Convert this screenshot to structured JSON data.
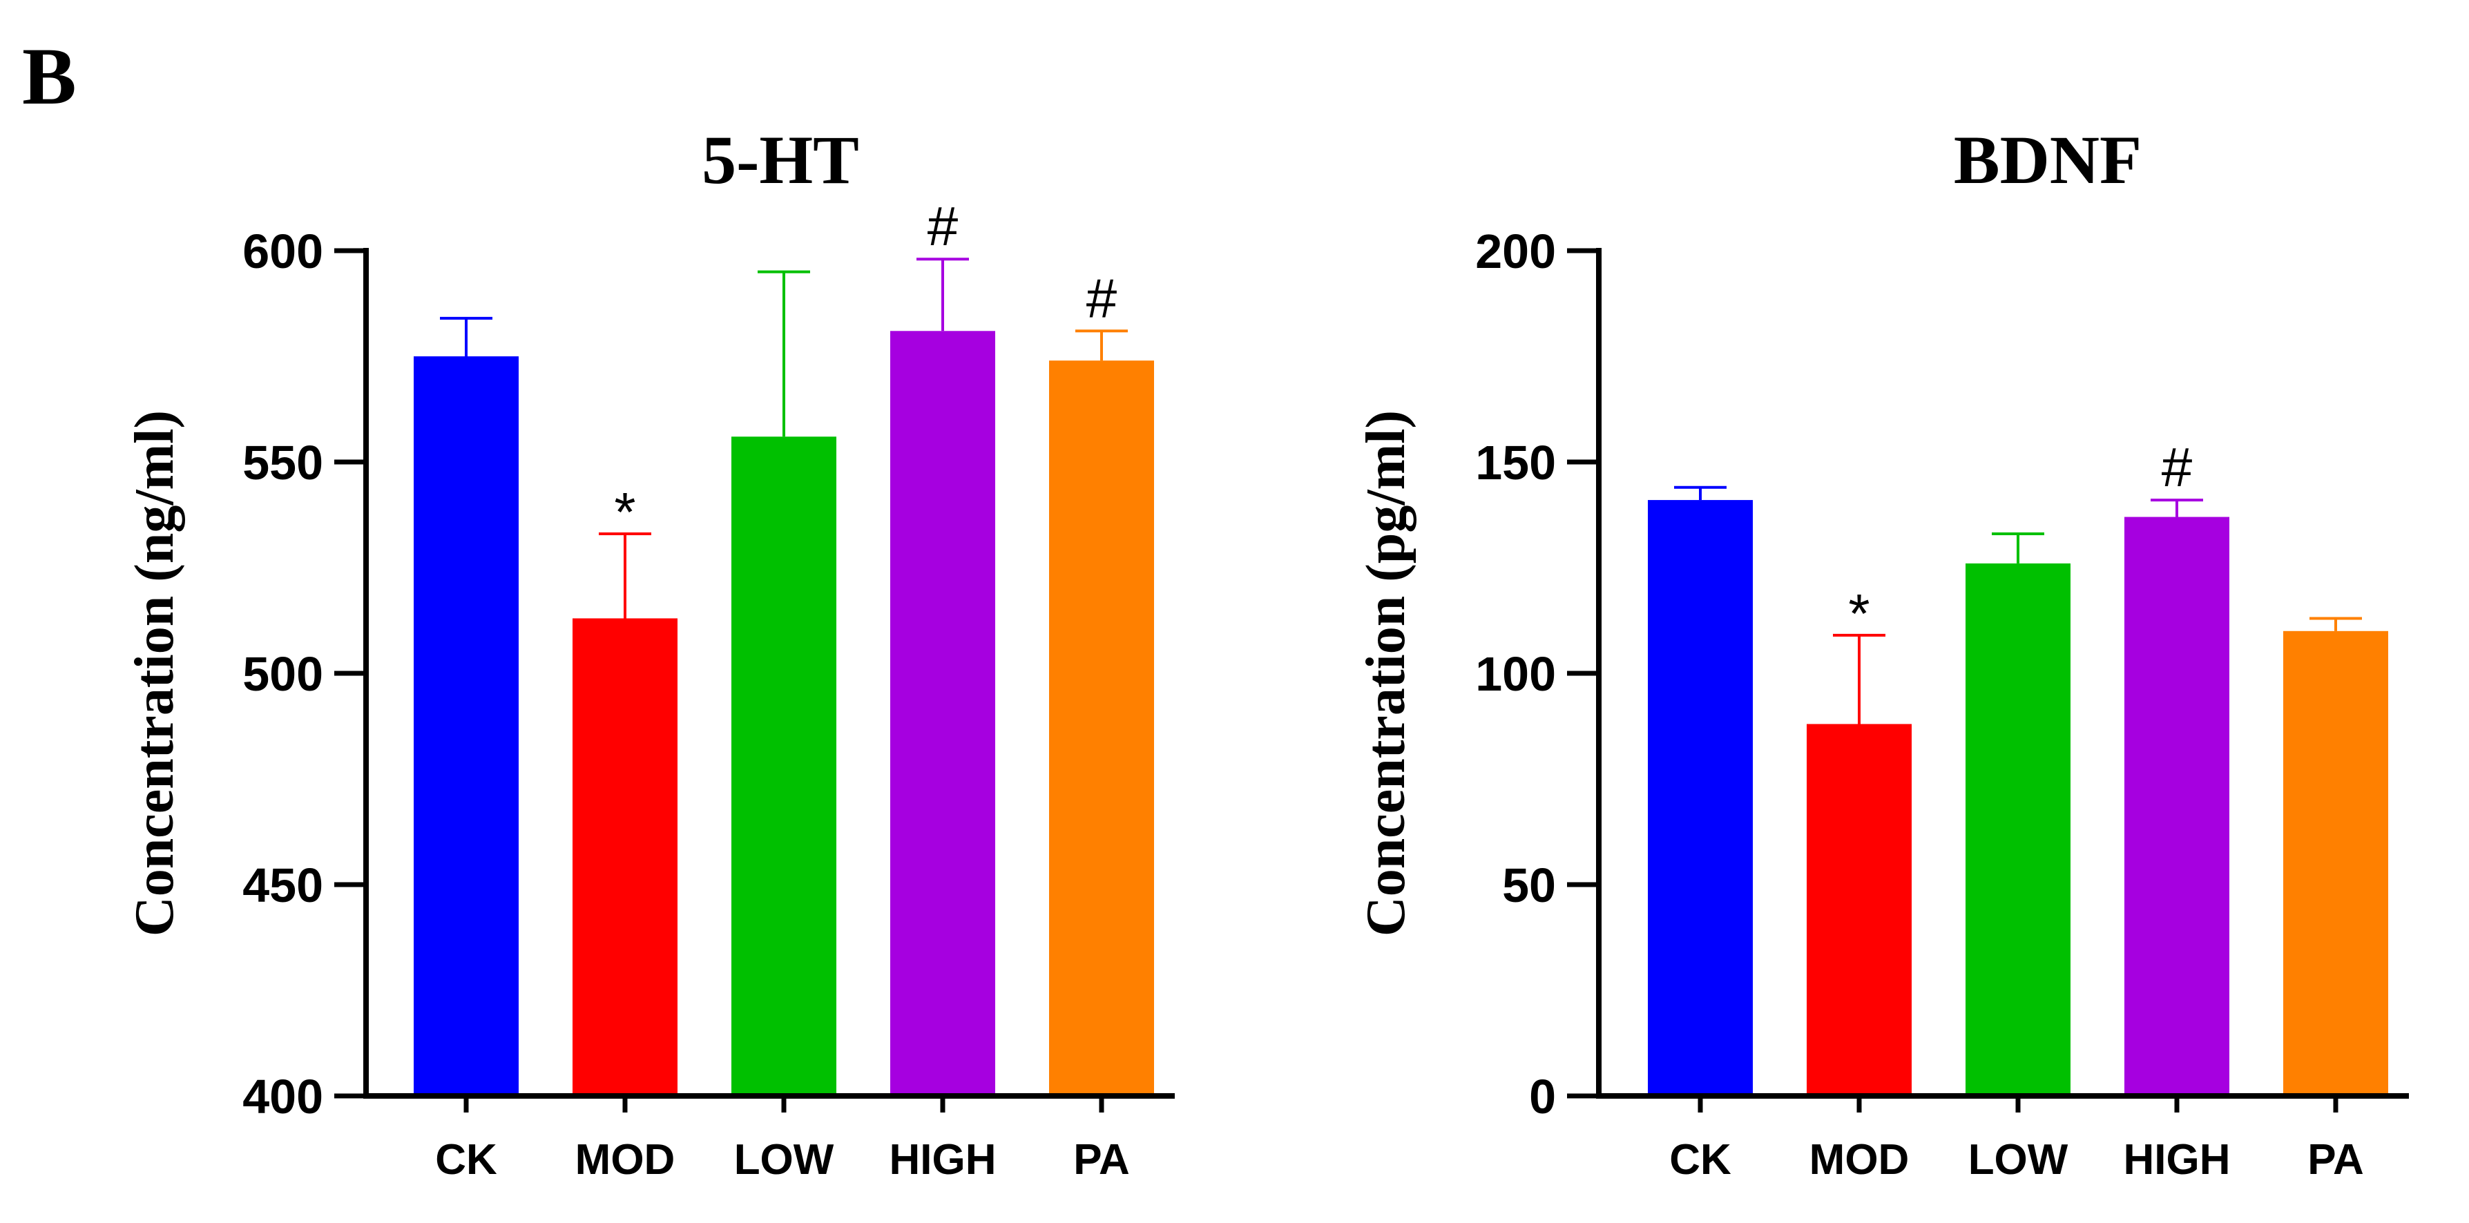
{
  "panel_label": "B",
  "chart_data": [
    {
      "type": "bar",
      "title": "5-HT",
      "xlabel": "",
      "ylabel": "Concentration (ng/ml)",
      "ylim": [
        400,
        600
      ],
      "yticks": [
        400,
        450,
        500,
        550,
        600
      ],
      "categories": [
        "CK",
        "MOD",
        "LOW",
        "HIGH",
        "PA"
      ],
      "values": [
        575,
        513,
        556,
        581,
        574
      ],
      "error_upper": [
        584,
        533,
        595,
        598,
        581
      ],
      "significance": [
        "",
        "*",
        "",
        "#",
        "#"
      ],
      "colors": [
        "#0000ff",
        "#ff0000",
        "#00c000",
        "#a600e0",
        "#ff8000"
      ]
    },
    {
      "type": "bar",
      "title": "BDNF",
      "xlabel": "",
      "ylabel": "Concentration (pg/ml)",
      "ylim": [
        0,
        200
      ],
      "yticks": [
        0,
        50,
        100,
        150,
        200
      ],
      "categories": [
        "CK",
        "MOD",
        "LOW",
        "HIGH",
        "PA"
      ],
      "values": [
        141,
        88,
        126,
        137,
        110
      ],
      "error_upper": [
        144,
        109,
        133,
        141,
        113
      ],
      "significance": [
        "",
        "*",
        "",
        "#",
        ""
      ],
      "colors": [
        "#0000ff",
        "#ff0000",
        "#00c000",
        "#a600e0",
        "#ff8000"
      ]
    }
  ]
}
